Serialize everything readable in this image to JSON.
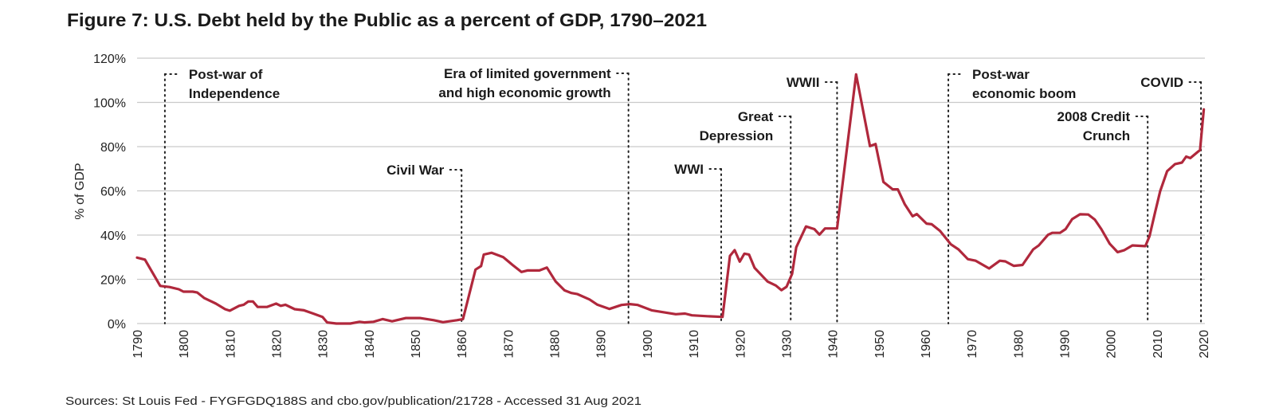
{
  "chart_data": {
    "type": "line",
    "title": "Figure 7: U.S. Debt held by the Public as a percent of GDP, 1790–2021",
    "ylabel": "% of GDP",
    "xlabel": "",
    "xlim": [
      1790,
      2020
    ],
    "ylim": [
      0,
      120
    ],
    "grid": true,
    "line_color": "#b0283c",
    "x_ticks": [
      "1790",
      "1800",
      "1810",
      "1820",
      "1830",
      "1840",
      "1850",
      "1860",
      "1870",
      "1880",
      "1890",
      "1900",
      "1910",
      "1920",
      "1930",
      "1940",
      "1950",
      "1960",
      "1970",
      "1980",
      "1990",
      "2000",
      "2010",
      "2020"
    ],
    "y_ticks": [
      "0%",
      "20%",
      "40%",
      "60%",
      "80%",
      "100%",
      "120%"
    ],
    "series": [
      {
        "x": [
          1790,
          1791.7,
          1795,
          1797,
          1799,
          1800,
          1802,
          1803,
          1804.5,
          1807,
          1809,
          1810,
          1812,
          1813,
          1814,
          1815,
          1816,
          1818,
          1820,
          1821,
          1822,
          1824,
          1826,
          1828,
          1830,
          1831,
          1833,
          1836,
          1838,
          1839,
          1841,
          1843,
          1845,
          1848,
          1851,
          1854,
          1856,
          1859,
          1860.3,
          1863,
          1864.2,
          1864.8,
          1866.5,
          1869,
          1871,
          1872.9,
          1874.2,
          1876.8,
          1878.4,
          1880.3,
          1882.2,
          1883.7,
          1885,
          1887.6,
          1889.3,
          1891.9,
          1894.5,
          1896.3,
          1898,
          1901,
          1906.2,
          1908.2,
          1909.7,
          1913,
          1916.3,
          1917.9,
          1918.9,
          1920,
          1921,
          1922,
          1923.2,
          1926,
          1927.8,
          1929,
          1930.1,
          1931.3,
          1932.2,
          1934.3,
          1936.1,
          1937.2,
          1938.4,
          1941,
          1945.1,
          1948.1,
          1949.3,
          1951,
          1953,
          1954.1,
          1955.6,
          1957.3,
          1958.2,
          1960.3,
          1961.4,
          1963.2,
          1965.5,
          1967.2,
          1969.2,
          1970.9,
          1973.8,
          1976.1,
          1977.3,
          1979.1,
          1981,
          1983.3,
          1984.5,
          1986.5,
          1987.4,
          1989.1,
          1990.3,
          1991.7,
          1993.4,
          1995.2,
          1996.6,
          1998,
          1999.8,
          2001.5,
          2002.9,
          2004.7,
          2007.5,
          2008.4,
          2009.6,
          2010.7,
          2012.2,
          2013.9,
          2015.4,
          2016.3,
          2017.2,
          2018.9,
          2019.3,
          2020.1
        ],
        "y": [
          29.8,
          28.9,
          17,
          16.5,
          15.5,
          14.4,
          14.4,
          14,
          11.5,
          9,
          6.5,
          5.8,
          8,
          8.5,
          10,
          10,
          7.5,
          7.5,
          9,
          8,
          8.5,
          6.5,
          6,
          4.5,
          3,
          0.5,
          0,
          0,
          0.8,
          0.5,
          0.8,
          2,
          1,
          2.5,
          2.5,
          1.5,
          0.6,
          1.5,
          2,
          24.4,
          26,
          31.2,
          32,
          30,
          26.5,
          23.3,
          24,
          24,
          25.3,
          19,
          15,
          13.8,
          13.3,
          10.9,
          8.5,
          6.6,
          8.4,
          8.8,
          8.4,
          6,
          4.2,
          4.5,
          3.7,
          3.3,
          3,
          30.6,
          33.2,
          28,
          31.6,
          31.2,
          25.2,
          19,
          17.2,
          15.1,
          16.6,
          22.5,
          34.5,
          43.9,
          42.7,
          40.2,
          43,
          43,
          112.7,
          80.2,
          81.2,
          64,
          60.7,
          60.7,
          53.9,
          48.5,
          49.5,
          45.2,
          44.9,
          41.9,
          35.9,
          33.5,
          29.1,
          28.4,
          24.9,
          28.4,
          28.1,
          26.1,
          26.5,
          33.5,
          35.3,
          40.1,
          41,
          41,
          42.7,
          47.2,
          49.4,
          49.3,
          47,
          42.7,
          36.1,
          32.3,
          33.1,
          35.3,
          35,
          39.5,
          50.3,
          59.9,
          68.9,
          72.1,
          72.8,
          75.5,
          74.8,
          77.8,
          78.4,
          96.8
        ]
      }
    ],
    "annotations": [
      {
        "year": 1796,
        "lines": [
          "Post-war of",
          "Independence"
        ],
        "side": "right"
      },
      {
        "year": 1860,
        "lines": [
          "Civil War"
        ],
        "side": "left"
      },
      {
        "year": 1896,
        "lines": [
          "Era of limited government",
          "and high economic growth"
        ],
        "side": "left"
      },
      {
        "year": 1916,
        "lines": [
          "WWI"
        ],
        "side": "left"
      },
      {
        "year": 1931,
        "lines": [
          "Great",
          "Depression"
        ],
        "side": "left"
      },
      {
        "year": 1941,
        "lines": [
          "WWII"
        ],
        "side": "left"
      },
      {
        "year": 1965,
        "lines": [
          "Post-war",
          "economic boom"
        ],
        "side": "right"
      },
      {
        "year": 2008,
        "lines": [
          "2008 Credit",
          "Crunch"
        ],
        "side": "left"
      },
      {
        "year": 2019.5,
        "lines": [
          "COVID"
        ],
        "side": "left"
      }
    ]
  },
  "footer": {
    "source": "Sources: St Louis Fed - FYGFGDQ188S and cbo.gov/publication/21728 - Accessed 31 Aug 2021"
  }
}
